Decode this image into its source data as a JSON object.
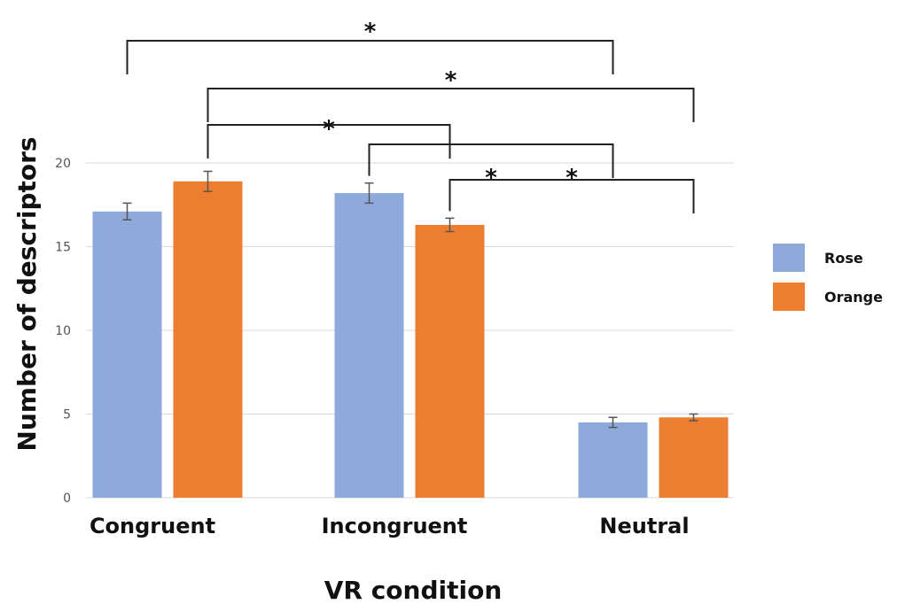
{
  "chart_data": {
    "type": "bar",
    "title": "",
    "xlabel": "VR condition",
    "ylabel": "Number of descriptors",
    "categories": [
      "Congruent",
      "Incongruent",
      "Neutral"
    ],
    "ylim": [
      0,
      20
    ],
    "yticks": [
      0,
      5,
      10,
      15,
      20
    ],
    "grid": true,
    "legend_position": "right",
    "series": [
      {
        "name": "Rose",
        "color": "#8eaadb",
        "values": [
          17.1,
          18.2,
          4.5
        ],
        "errors": [
          0.5,
          0.6,
          0.3
        ]
      },
      {
        "name": "Orange",
        "color": "#ed7d31",
        "values": [
          18.9,
          16.3,
          4.8
        ],
        "errors": [
          0.6,
          0.4,
          0.2
        ]
      }
    ],
    "significance": [
      {
        "from": {
          "category": 0,
          "series": 0
        },
        "to": {
          "category": 2,
          "series": 0
        },
        "label": "*"
      },
      {
        "from": {
          "category": 0,
          "series": 1
        },
        "to": {
          "category": 2,
          "series": 1
        },
        "label": "*"
      },
      {
        "from": {
          "category": 0,
          "series": 1
        },
        "to": {
          "category": 1,
          "series": 1
        },
        "label": "*"
      },
      {
        "from": {
          "category": 1,
          "series": 0
        },
        "to": {
          "category": 2,
          "series": 0
        },
        "label": "*"
      },
      {
        "from": {
          "category": 1,
          "series": 1
        },
        "to": {
          "category": 2,
          "series": 1
        },
        "label": "*"
      }
    ]
  }
}
